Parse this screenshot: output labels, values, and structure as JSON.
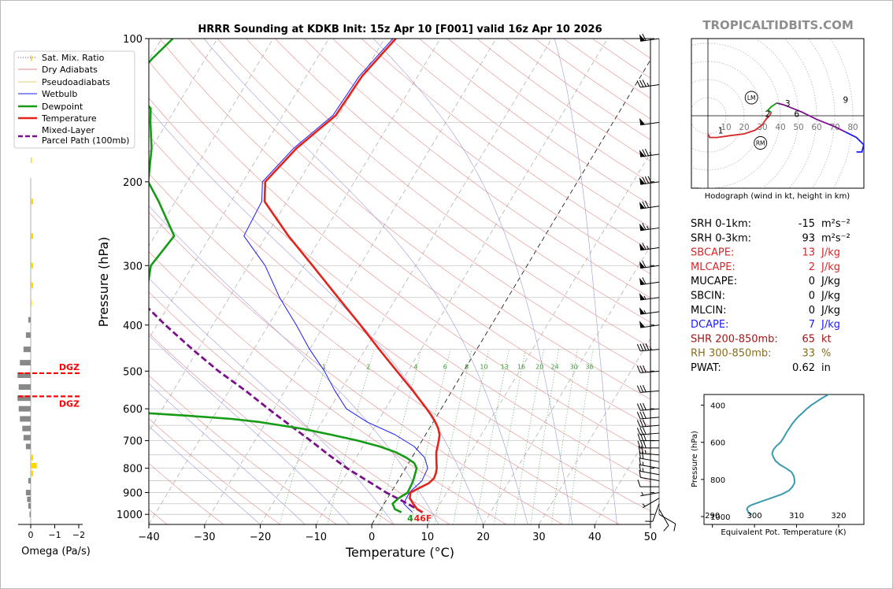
{
  "brand": {
    "text": "TROPICALTIDBITS.COM"
  },
  "legend": [
    "Sat. Mix. Ratio",
    "Dry Adiabats",
    "Pseudoadiabats",
    "Wetbulb",
    "Dewpoint",
    "Temperature",
    "Mixed-Layer",
    "Parcel Path (100mb)"
  ],
  "colors": {
    "temperature": "#e3241c",
    "dewpoint": "#159b15",
    "wetbulb": "#1a1aff",
    "parcel": "#7b0f8c",
    "dry_adiabat": "#e58a8a",
    "moist_adiabat": "#9a9ad8",
    "mixing_ratio": "#3a9a3a",
    "isotherm": "#888888",
    "dgz": "#ff0000",
    "omega_up": "#ffd700",
    "omega_down": "#888888",
    "theta_e": "#3a9ab0",
    "sbcape": "#d62728",
    "dcape": "#1a1aff",
    "shear": "#a31616",
    "rh": "#8a6d1a"
  },
  "chart_data": [
    {
      "type": "line",
      "title": "HRRR Sounding at KDKB Init: 15z Apr 10 [F001] valid 16z Apr 10 2026",
      "xlabel": "Temperature (°C)",
      "ylabel": "Pressure (hPa)",
      "xlim": [
        -40,
        50
      ],
      "ylim": [
        1050,
        100
      ],
      "log_y": true,
      "xticks": [
        -40,
        -30,
        -20,
        -10,
        0,
        10,
        20,
        30,
        40,
        50
      ],
      "yticks": [
        100,
        200,
        300,
        400,
        500,
        600,
        700,
        800,
        900,
        1000
      ],
      "surface_labels": {
        "dewpoint": "4",
        "temperature": "46F"
      },
      "mixing_ratio_labels": [
        "1",
        "2",
        "4",
        "6",
        "8",
        "10",
        "13",
        "16",
        "20",
        "24",
        "30",
        "36"
      ],
      "mixing_ratio_values": [
        1,
        2,
        4,
        6,
        8,
        10,
        13,
        16,
        20,
        24,
        30,
        36
      ],
      "series": [
        {
          "name": "Temperature",
          "p": [
            990,
            975,
            950,
            925,
            900,
            880,
            860,
            840,
            820,
            800,
            780,
            760,
            740,
            720,
            700,
            680,
            660,
            640,
            620,
            600,
            550,
            500,
            450,
            400,
            350,
            300,
            260,
            220,
            200,
            170,
            145,
            120,
            100
          ],
          "t": [
            7.8,
            6.5,
            5.2,
            4.0,
            3.5,
            4.6,
            5.8,
            6.2,
            6.0,
            5.6,
            5.0,
            4.4,
            3.8,
            3.4,
            3.0,
            2.5,
            1.6,
            0.4,
            -1.0,
            -2.6,
            -7.0,
            -12.0,
            -17.5,
            -23.5,
            -30.5,
            -38.5,
            -46.0,
            -54.0,
            -56.0,
            -54.0,
            -50.5,
            -50.0,
            -48.0
          ]
        },
        {
          "name": "Dewpoint",
          "p": [
            990,
            975,
            950,
            925,
            900,
            880,
            860,
            840,
            820,
            800,
            780,
            760,
            740,
            720,
            700,
            680,
            660,
            640,
            630,
            620,
            610,
            600,
            580,
            550,
            500,
            450,
            400,
            350,
            300,
            260,
            220,
            200,
            170,
            150,
            140,
            130,
            120,
            110,
            100
          ],
          "t": [
            4.0,
            2.5,
            1.5,
            2.0,
            3.0,
            2.9,
            2.8,
            2.6,
            2.3,
            2.0,
            1.0,
            -1.0,
            -3.5,
            -7.0,
            -11.5,
            -17.0,
            -23.0,
            -31.0,
            -36.5,
            -45.0,
            -55.0,
            -60.0,
            -59.5,
            -57.5,
            -57.0,
            -59.0,
            -62.0,
            -65.0,
            -67.5,
            -66.5,
            -73.0,
            -77.0,
            -80.0,
            -83.0,
            -84.5,
            -89.0,
            -90.5,
            -89.5,
            -88.0
          ]
        },
        {
          "name": "Wetbulb",
          "p": [
            990,
            950,
            900,
            850,
            800,
            760,
            720,
            680,
            640,
            600,
            550,
            500,
            450,
            400,
            350,
            300,
            260,
            220,
            200,
            170,
            145,
            120,
            100
          ],
          "t": [
            6.0,
            3.5,
            3.3,
            4.3,
            4.0,
            2.3,
            -0.8,
            -5.5,
            -11.8,
            -17.0,
            -21.0,
            -25.0,
            -30.0,
            -35.0,
            -41.0,
            -47.0,
            -54.0,
            -54.5,
            -56.5,
            -54.5,
            -51.0,
            -50.5,
            -48.5
          ]
        },
        {
          "name": "Mixed-Layer Parcel Path (100mb)",
          "p": [
            990,
            950,
            900,
            850,
            800,
            750,
            700,
            650,
            600,
            550,
            500,
            450,
            400,
            350,
            300,
            250,
            200
          ],
          "t": [
            7.8,
            4.2,
            -0.8,
            -5.5,
            -10.5,
            -15.2,
            -20.0,
            -25.3,
            -31.0,
            -37.0,
            -44.0,
            -51.0,
            -58.5,
            -66.5,
            -75.0,
            -84.0,
            -92.0
          ]
        }
      ]
    },
    {
      "type": "bar",
      "title": "",
      "xlabel": "Omega (Pa/s)",
      "xticks": [
        "0",
        "−1",
        "−2"
      ],
      "dgz_label": "DGZ",
      "dgz_top_p": 505,
      "dgz_bottom_p": 565,
      "p": [
        110,
        180,
        220,
        260,
        300,
        330,
        360,
        390,
        420,
        450,
        480,
        510,
        540,
        570,
        600,
        630,
        660,
        690,
        720,
        760,
        790,
        820,
        850,
        900,
        930,
        960,
        1000
      ],
      "omega": [
        -0.05,
        -0.05,
        -0.1,
        -0.1,
        -0.1,
        -0.1,
        -0.05,
        0.1,
        0.2,
        0.3,
        0.45,
        0.55,
        0.5,
        0.55,
        0.5,
        0.45,
        0.35,
        0.3,
        0.2,
        -0.1,
        -0.25,
        -0.1,
        0.1,
        0.2,
        0.15,
        0.1,
        0.05
      ]
    },
    {
      "type": "line",
      "title": "Hodograph (wind in kt, height in km)",
      "ring_labels": [
        "10",
        "20",
        "30",
        "40",
        "50",
        "60",
        "70",
        "80"
      ],
      "ring_values": [
        10,
        20,
        30,
        40,
        50,
        60,
        70,
        80
      ],
      "u": [
        0,
        1,
        5,
        12,
        20,
        26,
        30,
        32,
        34,
        35,
        33,
        35,
        38,
        42,
        47,
        52,
        56,
        60,
        65,
        70,
        76,
        82,
        86,
        85,
        82
      ],
      "v": [
        -10,
        -12,
        -12,
        -11,
        -10,
        -8,
        -5,
        -2,
        0,
        2,
        3,
        5,
        7,
        6,
        4,
        2,
        0,
        -2,
        -4,
        -6,
        -9,
        -12,
        -16,
        -20,
        -20
      ],
      "height_labels": [
        "1",
        "2",
        "3",
        "6",
        "9"
      ],
      "height_u": [
        7,
        33,
        44,
        49,
        76
      ],
      "height_v": [
        -8,
        1,
        7,
        1,
        9
      ],
      "storm_motion_labels": [
        "LM",
        "RM"
      ],
      "storm_motion_u": [
        24,
        29
      ],
      "storm_motion_v": [
        10,
        -15
      ]
    },
    {
      "type": "line",
      "title": "",
      "xlabel": "Equivalent Pot. Temperature (K)",
      "ylabel": "Pressure (hPa)",
      "xlim": [
        288,
        326
      ],
      "ylim": [
        1000,
        300
      ],
      "xticks": [
        290,
        300,
        310,
        320
      ],
      "yticks": [
        400,
        600,
        800,
        1000
      ],
      "p": [
        990,
        975,
        960,
        950,
        940,
        920,
        900,
        880,
        860,
        840,
        820,
        800,
        780,
        760,
        740,
        720,
        700,
        680,
        660,
        640,
        620,
        600,
        580,
        560,
        540,
        520,
        500,
        480,
        460,
        440,
        420,
        400,
        380,
        360,
        340,
        320,
        300
      ],
      "theta_e": [
        299.3,
        298.5,
        298.2,
        298.4,
        299.0,
        301.5,
        304.0,
        306.5,
        308.2,
        309.0,
        309.5,
        309.5,
        309.3,
        308.8,
        307.5,
        306.0,
        305.0,
        304.5,
        304.2,
        304.5,
        305.2,
        306.2,
        306.8,
        307.3,
        307.8,
        308.4,
        309.0,
        309.7,
        310.5,
        311.5,
        312.4,
        313.5,
        314.8,
        316.2,
        317.8,
        319.6,
        321.5
      ]
    }
  ],
  "winds": {
    "levels": [
      1000,
      975,
      950,
      925,
      900,
      875,
      850,
      825,
      800,
      775,
      750,
      725,
      700,
      675,
      650,
      625,
      600,
      550,
      500,
      450,
      400,
      375,
      350,
      325,
      300,
      275,
      250,
      225,
      200,
      175,
      150,
      125,
      100
    ],
    "speed_kt": [
      12,
      10,
      8,
      6,
      5,
      8,
      10,
      15,
      15,
      20,
      25,
      30,
      30,
      30,
      30,
      30,
      30,
      30,
      30,
      45,
      50,
      55,
      55,
      60,
      60,
      65,
      65,
      70,
      80,
      75,
      50,
      35,
      60
    ],
    "dir_deg": [
      120,
      150,
      200,
      240,
      260,
      270,
      280,
      280,
      280,
      280,
      275,
      270,
      270,
      265,
      265,
      265,
      265,
      265,
      265,
      265,
      262,
      262,
      262,
      262,
      262,
      262,
      262,
      262,
      262,
      262,
      262,
      262,
      262
    ]
  },
  "params": [
    {
      "label": "SRH 0-1km:",
      "value": "-15",
      "unit": "m²s⁻²",
      "color": "#000000"
    },
    {
      "label": "SRH 0-3km:",
      "value": "93",
      "unit": "m²s⁻²",
      "color": "#000000"
    },
    {
      "label": "SBCAPE:",
      "value": "13",
      "unit": "J/kg",
      "color": "#d62728"
    },
    {
      "label": "MLCAPE:",
      "value": "2",
      "unit": "J/kg",
      "color": "#d62728"
    },
    {
      "label": "MUCAPE:",
      "value": "0",
      "unit": "J/kg",
      "color": "#000000"
    },
    {
      "label": "SBCIN:",
      "value": "0",
      "unit": "J/kg",
      "color": "#000000"
    },
    {
      "label": "MLCIN:",
      "value": "0",
      "unit": "J/kg",
      "color": "#000000"
    },
    {
      "label": "DCAPE:",
      "value": "7",
      "unit": "J/kg",
      "color": "#1a1aff"
    },
    {
      "label": "SHR 200-850mb:",
      "value": "65",
      "unit": "kt",
      "color": "#a31616"
    },
    {
      "label": "RH 300-850mb:",
      "value": "33",
      "unit": "%",
      "color": "#8a6d1a"
    },
    {
      "label": "PWAT:",
      "value": "0.62",
      "unit": "in",
      "color": "#000000"
    }
  ]
}
